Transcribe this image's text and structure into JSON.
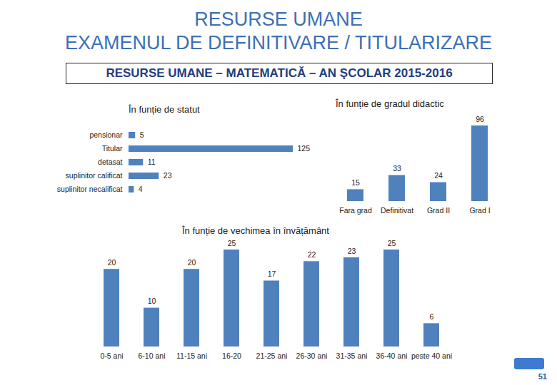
{
  "header": {
    "title": "RESURSE UMANE",
    "subtitle": "EXAMENUL DE DEFINITIVARE / TITULARIZARE",
    "section": "RESURSE UMANE – MATEMATICĂ – AN ŞCOLAR 2015-2016"
  },
  "page_number": "51",
  "chart_data": [
    {
      "type": "bar",
      "title": "În funție de statut",
      "orientation": "horizontal",
      "categories": [
        "pensionar",
        "Titular",
        "detasat",
        "suplinitor calificat",
        "suplinitor necalificat"
      ],
      "values": [
        5,
        125,
        11,
        23,
        4
      ],
      "color": "#4f81bd",
      "data_labels": true,
      "tick_labels": "y"
    },
    {
      "type": "bar",
      "title": "În funție de gradul didactic",
      "categories": [
        "Fara grad",
        "Definitivat",
        "Grad II",
        "Grad I"
      ],
      "values": [
        15,
        33,
        24,
        96
      ],
      "color": "#4f81bd",
      "data_labels": true,
      "tick_labels": "x"
    },
    {
      "type": "bar",
      "title": "În funție de vechimea în învățământ",
      "categories": [
        "0-5 ani",
        "6-10 ani",
        "11-15 ani",
        "16-20",
        "21-25 ani",
        "26-30 ani",
        "31-35 ani",
        "36-40 ani",
        "peste 40 ani"
      ],
      "values": [
        20,
        10,
        20,
        25,
        17,
        22,
        23,
        25,
        6
      ],
      "color": "#4f81bd",
      "data_labels": true,
      "tick_labels": "x"
    }
  ]
}
